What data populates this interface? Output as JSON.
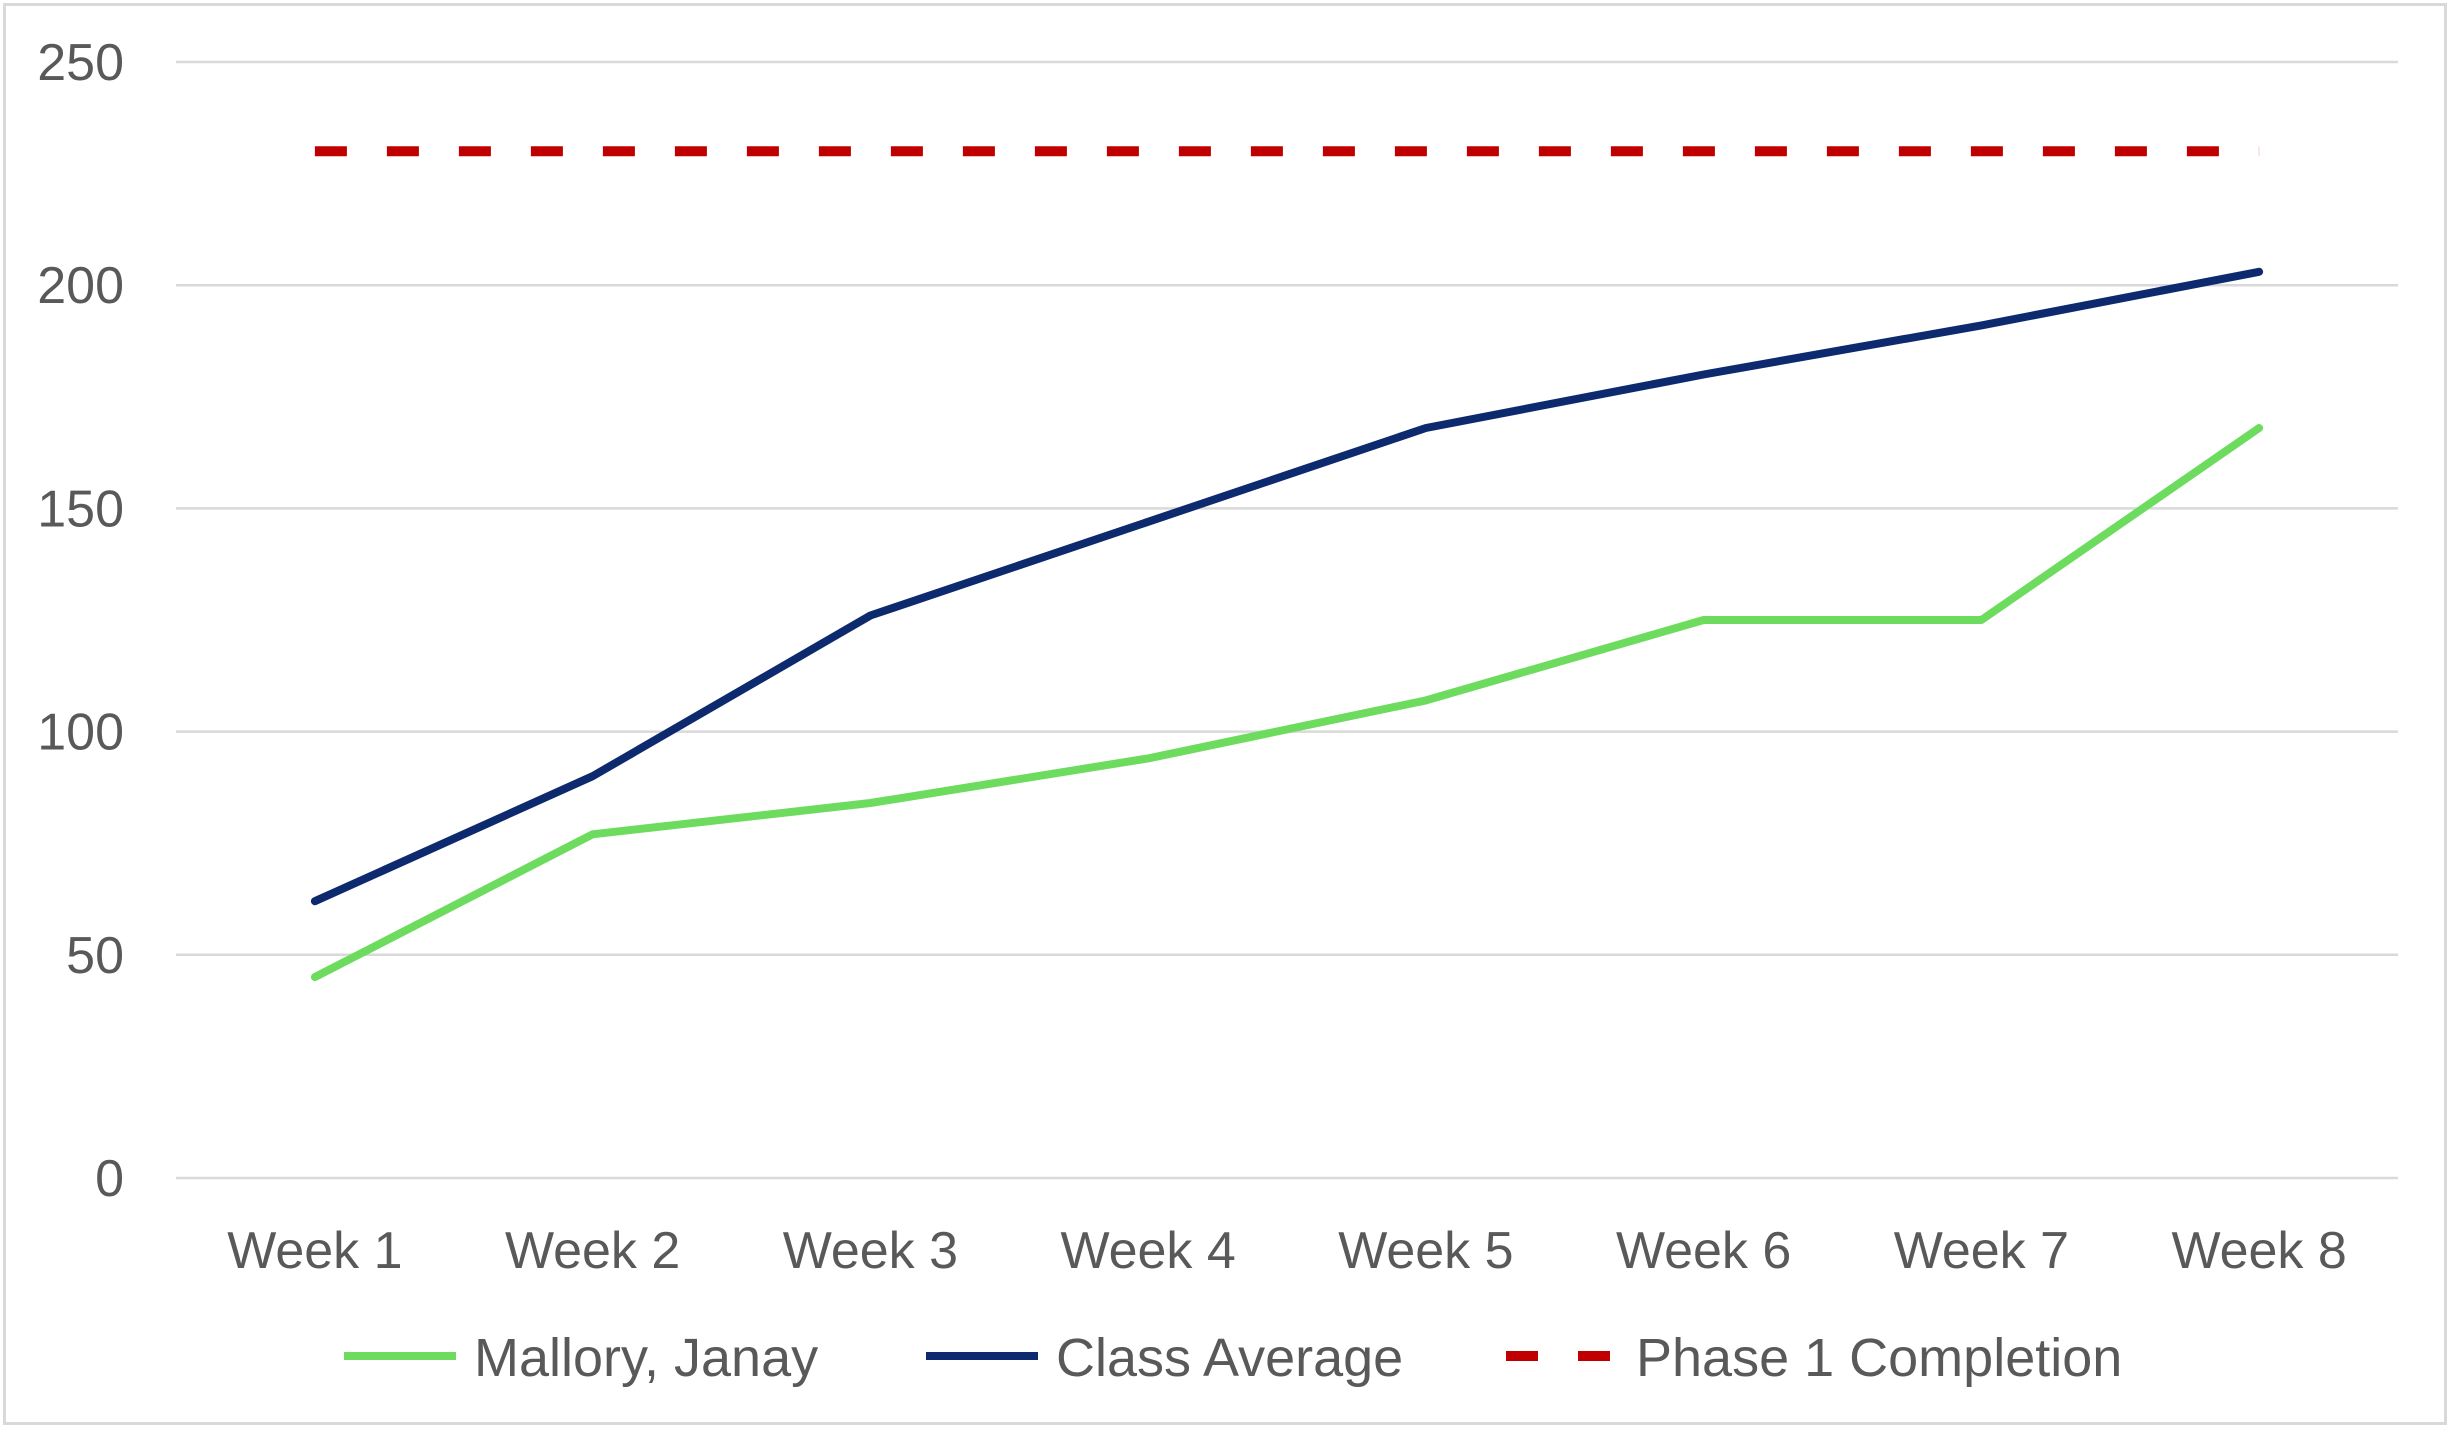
{
  "chart_data": {
    "type": "line",
    "title": "",
    "xlabel": "",
    "ylabel": "",
    "categories": [
      "Week 1",
      "Week 2",
      "Week 3",
      "Week 4",
      "Week 5",
      "Week 6",
      "Week 7",
      "Week 8"
    ],
    "ylim": [
      0,
      250
    ],
    "yticks": [
      "0",
      "50",
      "100",
      "150",
      "200",
      "250"
    ],
    "grid": "horizontal",
    "legend_position": "bottom",
    "series": [
      {
        "name": "Mallory, Janay",
        "color": "#6ddc5e",
        "dash": "solid",
        "values": [
          45,
          77,
          84,
          94,
          107,
          125,
          125,
          168
        ]
      },
      {
        "name": "Class Average",
        "color": "#0d2a6e",
        "dash": "solid",
        "values": [
          62,
          90,
          126,
          147,
          168,
          180,
          191,
          203
        ]
      },
      {
        "name": "Phase 1 Completion",
        "color": "#c00000",
        "dash": "dashed",
        "values": [
          230,
          230,
          230,
          230,
          230,
          230,
          230,
          230
        ]
      }
    ]
  }
}
